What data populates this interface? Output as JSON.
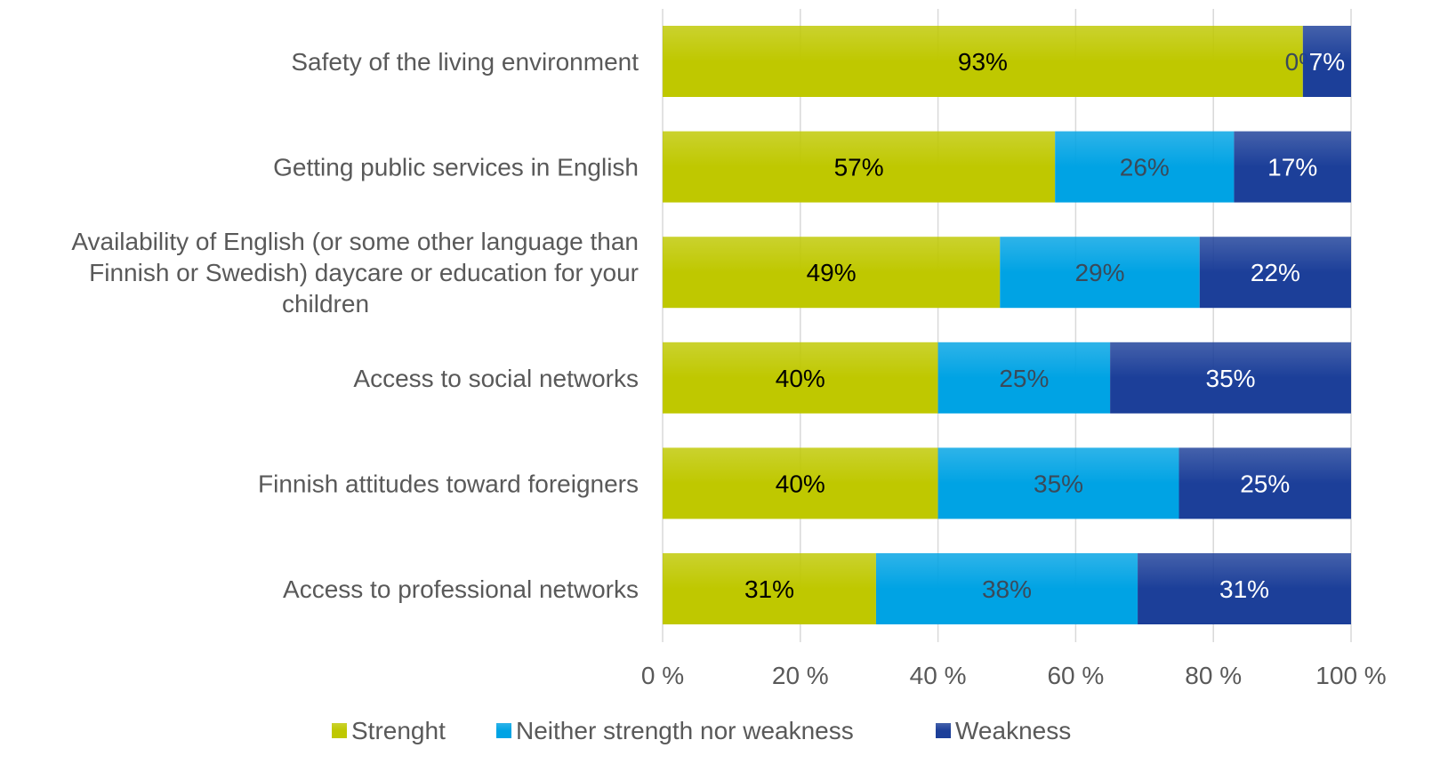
{
  "chart_data": {
    "type": "bar",
    "orientation": "horizontal",
    "stacked": "percent",
    "categories": [
      "Safety of the living environment",
      "Getting public services in English",
      "Availability of English (or some other language than Finnish or Swedish) daycare or education for your children",
      "Access to social networks",
      "Finnish attitudes toward foreigners",
      "Access to professional networks"
    ],
    "category_lines": [
      [
        "Safety of the living environment"
      ],
      [
        "Getting public services in English"
      ],
      [
        "Availability of English (or some other language than",
        "Finnish or Swedish) daycare or education for your",
        "children"
      ],
      [
        "Access to social networks"
      ],
      [
        "Finnish attitudes toward foreigners"
      ],
      [
        "Access to professional networks"
      ]
    ],
    "series": [
      {
        "name": "Strenght",
        "color": "#BFC800",
        "label_color": "#000000",
        "values": [
          93,
          57,
          49,
          40,
          40,
          31
        ]
      },
      {
        "name": "Neither strength nor weakness",
        "color": "#00A3E4",
        "label_color": "#3A4A5A",
        "values": [
          0,
          26,
          29,
          25,
          35,
          38
        ]
      },
      {
        "name": "Weakness",
        "color": "#1C3F99",
        "label_color": "#ffffff",
        "values": [
          7,
          17,
          22,
          35,
          25,
          31
        ]
      }
    ],
    "xlim": [
      0,
      100
    ],
    "xticks": [
      "0 %",
      "20 %",
      "40 %",
      "60 %",
      "80 %",
      "100 %"
    ],
    "grid": true,
    "legend": "bottom"
  }
}
